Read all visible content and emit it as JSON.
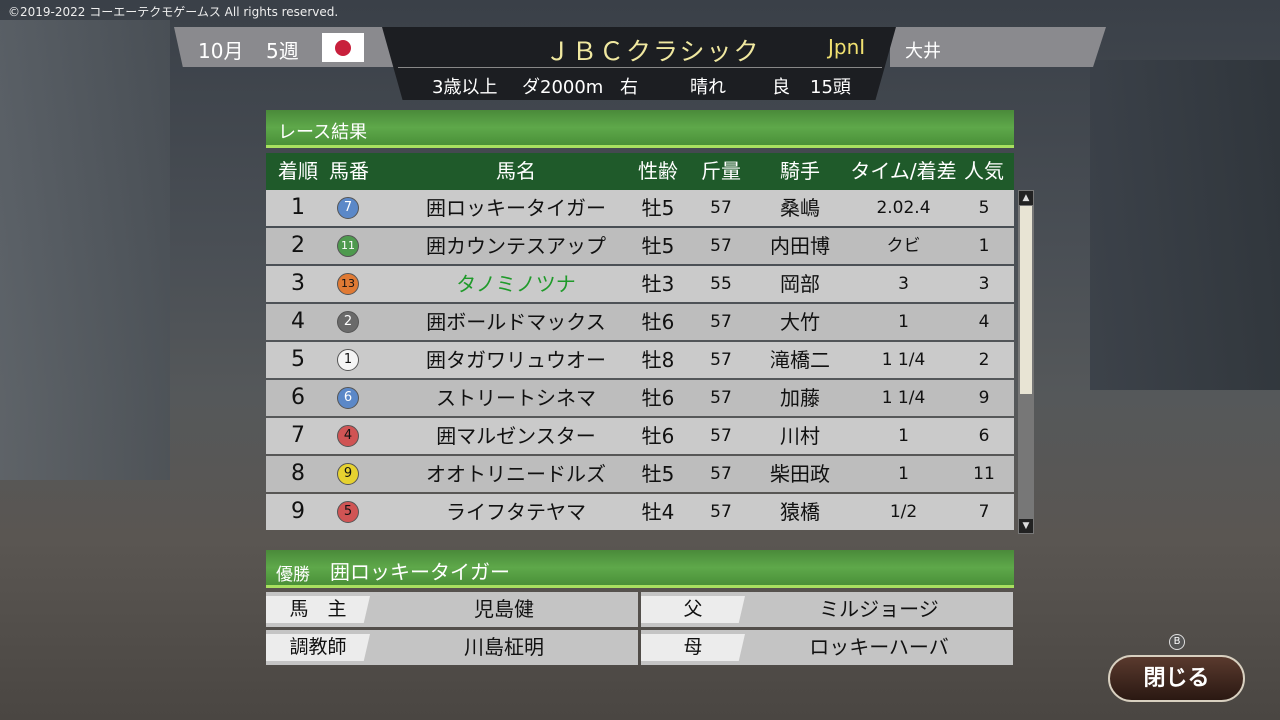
{
  "copyright": "©2019-2022 コーエーテクモゲームス All rights reserved.",
  "header": {
    "month": "10月",
    "week": "5週",
    "country_flag": "japan-flag",
    "race_name": "ＪＢＣクラシック",
    "grade": "JpnⅠ",
    "venue": "大井",
    "conditions": {
      "age": "3歳以上",
      "surface_distance": "ダ2000m",
      "direction": "右",
      "weather": "晴れ",
      "track": "良",
      "runners": "15頭"
    }
  },
  "results": {
    "title": "レース結果",
    "columns": [
      "着順",
      "馬番",
      "馬名",
      "性齢",
      "斤量",
      "騎手",
      "タイム/着差",
      "人気"
    ],
    "rows": [
      {
        "rank": "1",
        "num": "7",
        "color": "#5b88c8",
        "name": "囲ロッキータイガー",
        "sex_age": "牡5",
        "weight": "57",
        "jockey": "桑嶋",
        "margin": "2.02.4",
        "pop": "5"
      },
      {
        "rank": "2",
        "num": "11",
        "color": "#4e9a4e",
        "name": "囲カウンテスアップ",
        "sex_age": "牡5",
        "weight": "57",
        "jockey": "内田博",
        "margin": "クビ",
        "pop": "1"
      },
      {
        "rank": "3",
        "num": "13",
        "color": "#e07a34",
        "name": "タノミノツナ",
        "sex_age": "牡3",
        "weight": "55",
        "jockey": "岡部",
        "margin": "3",
        "pop": "3",
        "highlight": "#1f9a2a"
      },
      {
        "rank": "4",
        "num": "2",
        "color": "#6a6a6a",
        "name": "囲ボールドマックス",
        "sex_age": "牡6",
        "weight": "57",
        "jockey": "大竹",
        "margin": "1",
        "pop": "4"
      },
      {
        "rank": "5",
        "num": "1",
        "color": "#f4f4f4",
        "name": "囲タガワリュウオー",
        "sex_age": "牡8",
        "weight": "57",
        "jockey": "滝橋二",
        "margin": "1 1/4",
        "pop": "2"
      },
      {
        "rank": "6",
        "num": "6",
        "color": "#5b88c8",
        "name": "ストリートシネマ",
        "sex_age": "牡6",
        "weight": "57",
        "jockey": "加藤",
        "margin": "1 1/4",
        "pop": "9"
      },
      {
        "rank": "7",
        "num": "4",
        "color": "#d05454",
        "name": "囲マルゼンスター",
        "sex_age": "牡6",
        "weight": "57",
        "jockey": "川村",
        "margin": "1",
        "pop": "6"
      },
      {
        "rank": "8",
        "num": "9",
        "color": "#e6d230",
        "name": "オオトリニードルズ",
        "sex_age": "牡5",
        "weight": "57",
        "jockey": "柴田政",
        "margin": "1",
        "pop": "11"
      },
      {
        "rank": "9",
        "num": "5",
        "color": "#d05454",
        "name": "ライフタテヤマ",
        "sex_age": "牡4",
        "weight": "57",
        "jockey": "猿橋",
        "margin": "1/2",
        "pop": "7"
      }
    ]
  },
  "winner": {
    "label": "優勝",
    "name": "囲ロッキータイガー",
    "owner_label": "馬　主",
    "owner": "児島健",
    "trainer_label": "調教師",
    "trainer": "川島柾明",
    "sire_label": "父",
    "sire": "ミルジョージ",
    "dam_label": "母",
    "dam": "ロッキーハーバ"
  },
  "close_button": {
    "key": "B",
    "label": "閉じる"
  }
}
